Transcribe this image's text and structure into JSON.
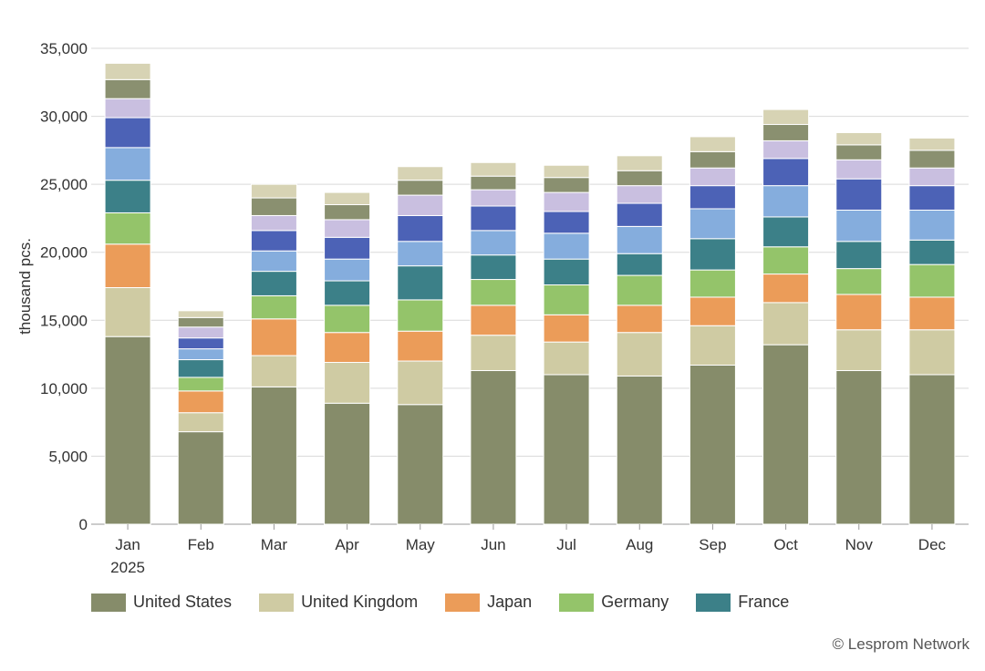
{
  "chart_data": {
    "type": "bar",
    "stacked": true,
    "ylabel": "thousand pcs.",
    "ylim": [
      0,
      35000
    ],
    "yticks": [
      0,
      5000,
      10000,
      15000,
      20000,
      25000,
      30000,
      35000
    ],
    "ytick_labels": [
      "0",
      "5,000",
      "10,000",
      "15,000",
      "20,000",
      "25,000",
      "30,000",
      "35,000"
    ],
    "categories": [
      "Jan",
      "Feb",
      "Mar",
      "Apr",
      "May",
      "Jun",
      "Jul",
      "Aug",
      "Sep",
      "Oct",
      "Nov",
      "Dec"
    ],
    "category_sublabels": [
      "2025",
      "",
      "",
      "",
      "",
      "",
      "",
      "",
      "",
      "",
      "",
      ""
    ],
    "grid": true,
    "series": [
      {
        "name": "United States",
        "color": "#868c6a",
        "values": [
          13800,
          6800,
          10100,
          8900,
          8800,
          11300,
          11000,
          10900,
          11700,
          13200,
          11300,
          11000
        ]
      },
      {
        "name": "United Kingdom",
        "color": "#cfcba3",
        "values": [
          3600,
          1400,
          2300,
          3000,
          3200,
          2600,
          2400,
          3200,
          2900,
          3100,
          3000,
          3300
        ]
      },
      {
        "name": "Japan",
        "color": "#eb9c59",
        "values": [
          3200,
          1600,
          2700,
          2200,
          2200,
          2200,
          2000,
          2000,
          2100,
          2100,
          2600,
          2400
        ]
      },
      {
        "name": "Germany",
        "color": "#94c46a",
        "values": [
          2300,
          1000,
          1700,
          2000,
          2300,
          1900,
          2200,
          2200,
          2000,
          2000,
          1900,
          2400
        ]
      },
      {
        "name": "France",
        "color": "#3c8088",
        "values": [
          2400,
          1300,
          1800,
          1800,
          2500,
          1800,
          1900,
          1600,
          2300,
          2200,
          2000,
          1800
        ]
      },
      {
        "name": "",
        "color": "#85addd",
        "values": [
          2400,
          800,
          1500,
          1600,
          1800,
          1800,
          1900,
          2000,
          2200,
          2300,
          2300,
          2200
        ]
      },
      {
        "name": "",
        "color": "#4c62b6",
        "values": [
          2200,
          800,
          1500,
          1600,
          1900,
          1800,
          1600,
          1700,
          1700,
          2000,
          2300,
          1800
        ]
      },
      {
        "name": "",
        "color": "#c9bfe0",
        "values": [
          1400,
          800,
          1100,
          1300,
          1500,
          1200,
          1400,
          1300,
          1300,
          1300,
          1400,
          1300
        ]
      },
      {
        "name": "",
        "color": "#8a9070",
        "values": [
          1400,
          700,
          1300,
          1100,
          1100,
          1000,
          1100,
          1100,
          1200,
          1200,
          1100,
          1300
        ]
      },
      {
        "name": "",
        "color": "#d7d3b4",
        "values": [
          1200,
          500,
          1000,
          900,
          1000,
          1000,
          900,
          1100,
          1100,
          1100,
          900,
          900
        ]
      }
    ]
  },
  "legend": [
    {
      "label": "United States",
      "color": "#868c6a"
    },
    {
      "label": "United Kingdom",
      "color": "#cfcba3"
    },
    {
      "label": "Japan",
      "color": "#eb9c59"
    },
    {
      "label": "Germany",
      "color": "#94c46a"
    },
    {
      "label": "France",
      "color": "#3c8088"
    }
  ],
  "source": "© Lesprom Network"
}
